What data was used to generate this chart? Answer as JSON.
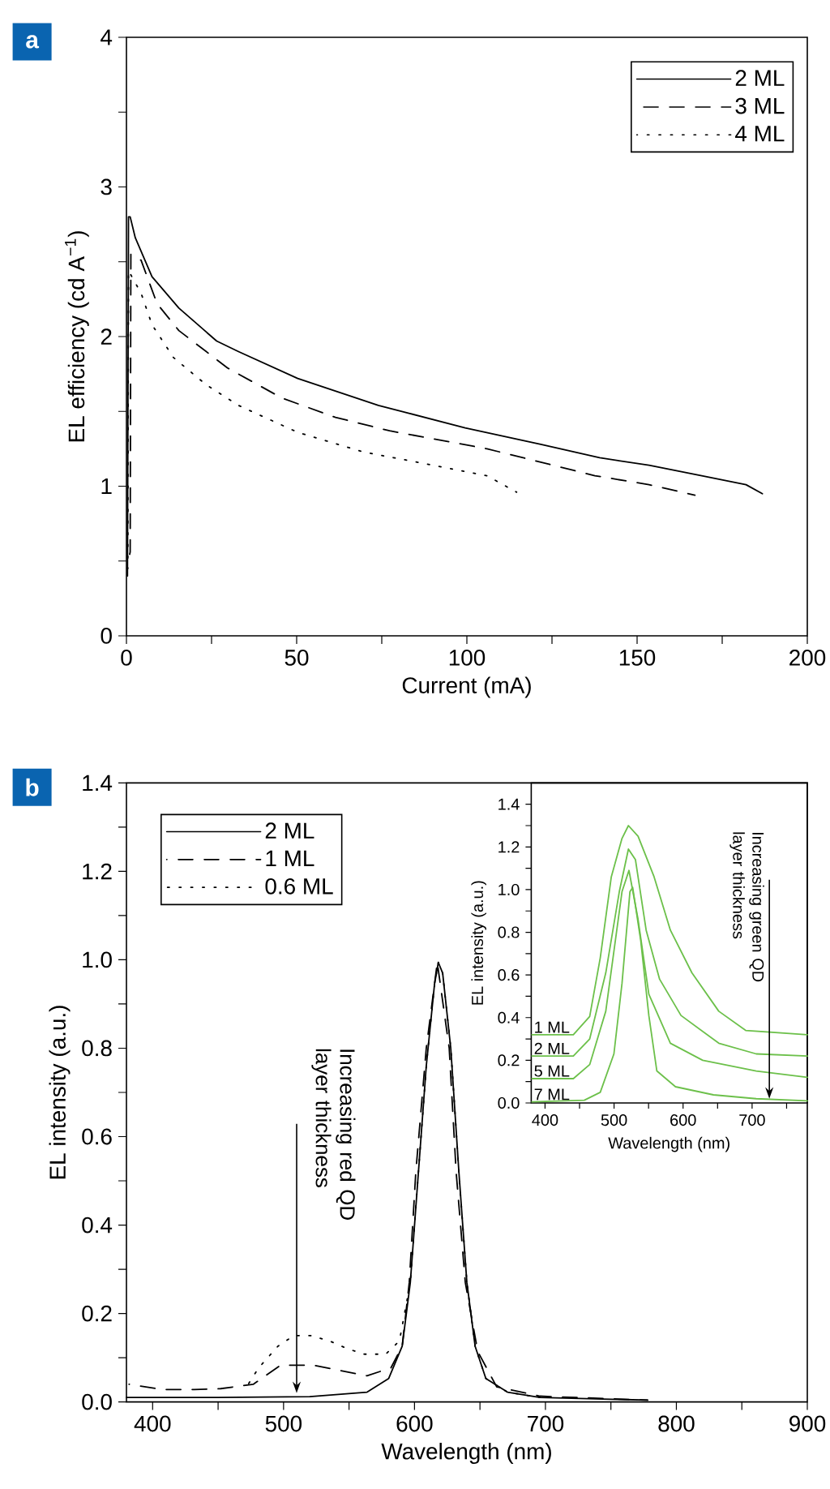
{
  "chart_data": [
    {
      "type": "line",
      "title": "a",
      "xlabel": "Current (mA)",
      "ylabel": "EL efficiency (cd A$^{−1}$)",
      "xlim": [
        0,
        200
      ],
      "ylim": [
        0,
        4
      ],
      "xticks": [
        0,
        {
          "value": 25,
          "label": null
        },
        50,
        {
          "value": 75,
          "label": null
        },
        100,
        {
          "value": 125,
          "label": null
        },
        150,
        {
          "value": 175,
          "label": null
        },
        200
      ],
      "yticks": [
        0,
        {
          "value": 0.5,
          "label": null
        },
        1,
        {
          "value": 1.5,
          "label": null
        },
        2,
        {
          "value": 2.5,
          "label": null
        },
        3,
        {
          "value": 3.5,
          "label": null
        },
        4
      ],
      "legend": "top right",
      "series": [
        {
          "name": "2 ML",
          "color": "#000000",
          "line_style": "solid",
          "x": [
            0.3,
            0.6,
            1.1,
            2.6,
            7.5,
            15.4,
            26.5,
            32.9,
            50.3,
            74,
            99.5,
            121.7,
            139,
            153.5,
            169,
            182,
            186.8
          ],
          "values": [
            0.4,
            2.8,
            2.8,
            2.66,
            2.4,
            2.19,
            1.97,
            1.9,
            1.72,
            1.54,
            1.39,
            1.28,
            1.19,
            1.14,
            1.07,
            1.01,
            0.95
          ]
        },
        {
          "name": "3 ML",
          "color": "#000000",
          "line_style": "dashed",
          "x": [
            0.5,
            1.1,
            1.3,
            4.3,
            9,
            15.4,
            29.7,
            45.6,
            61.4,
            77.3,
            105.9,
            137.6,
            153.5,
            167
          ],
          "values": [
            0.5,
            0.56,
            2.55,
            2.51,
            2.22,
            2.04,
            1.79,
            1.59,
            1.46,
            1.37,
            1.25,
            1.07,
            1.01,
            0.94
          ]
        },
        {
          "name": "4 ML",
          "color": "#000000",
          "line_style": "dotted",
          "x": [
            0.4,
            0.6,
            4.3,
            7.5,
            13.8,
            23.3,
            32.9,
            50.3,
            69.4,
            90,
            105.9,
            114.6
          ],
          "values": [
            0.45,
            2.44,
            2.29,
            2.08,
            1.86,
            1.68,
            1.54,
            1.36,
            1.23,
            1.14,
            1.07,
            0.96
          ]
        }
      ]
    },
    {
      "type": "line",
      "title": "b",
      "xlabel": "Wavelength (nm)",
      "ylabel": "EL intensity (a.u.)",
      "xlim": [
        380,
        900
      ],
      "ylim": [
        0,
        1.4
      ],
      "xticks": [
        400,
        {
          "value": 450,
          "label": null
        },
        500,
        {
          "value": 550,
          "label": null
        },
        600,
        {
          "value": 650,
          "label": null
        },
        700,
        {
          "value": 750,
          "label": null
        },
        800,
        {
          "value": 850,
          "label": null
        },
        900
      ],
      "yticks": [
        {
          "value": 0,
          "label": "0.0"
        },
        {
          "value": 0.1,
          "label": null
        },
        0.2,
        {
          "value": 0.3,
          "label": null
        },
        0.4,
        {
          "value": 0.5,
          "label": null
        },
        0.6,
        {
          "value": 0.7,
          "label": null
        },
        0.8,
        {
          "value": 0.9,
          "label": null
        },
        {
          "value": 1,
          "label": "1.0"
        },
        {
          "value": 1.1,
          "label": null
        },
        1.2,
        {
          "value": 1.3,
          "label": null
        },
        1.4
      ],
      "legend": "top left",
      "annotations": [
        {
          "text": "Increasing red QD layer thickness",
          "x": 510,
          "y": 0.02
        }
      ],
      "series": [
        {
          "name": "2 ML",
          "color": "#000000",
          "line_style": "solid",
          "x": [
            380,
            450,
            520,
            563.8,
            580.3,
            590.6,
            596.8,
            603,
            609,
            615.3,
            618.2,
            621.5,
            627.7,
            633.9,
            640,
            646.3,
            654.5,
            671,
            695.8,
            778
          ],
          "values": [
            0.01,
            0.01,
            0.012,
            0.022,
            0.053,
            0.126,
            0.27,
            0.52,
            0.76,
            0.945,
            0.994,
            0.97,
            0.8,
            0.52,
            0.27,
            0.126,
            0.053,
            0.022,
            0.01,
            0.004
          ]
        },
        {
          "name": "1 ML",
          "color": "#000000",
          "line_style": "dashed",
          "x": [
            382,
            407,
            431.8,
            452,
            477,
            497.8,
            522.5,
            543,
            563.8,
            582,
            590.6,
            596,
            601,
            609,
            617.4,
            626.5,
            631.8,
            638.8,
            648.3,
            662.8,
            695.8,
            778
          ],
          "values": [
            0.04,
            0.028,
            0.028,
            0.03,
            0.04,
            0.083,
            0.083,
            0.071,
            0.059,
            0.077,
            0.126,
            0.27,
            0.52,
            0.8,
            0.994,
            0.8,
            0.52,
            0.27,
            0.114,
            0.034,
            0.013,
            0.004
          ]
        },
        {
          "name": "0.6 ML",
          "color": "#000000",
          "line_style": "dotted",
          "x": [
            473,
            481,
            495.7,
            508,
            520.5,
            535,
            549,
            561.7,
            578,
            588.5,
            596.8,
            603,
            609,
            615.3,
            618.2,
            621.5,
            627.7,
            633.9,
            640,
            646.3,
            654.5,
            671,
            695.8
          ],
          "values": [
            0.04,
            0.077,
            0.126,
            0.15,
            0.15,
            0.138,
            0.12,
            0.108,
            0.108,
            0.138,
            0.27,
            0.52,
            0.76,
            0.945,
            0.994,
            0.97,
            0.8,
            0.52,
            0.27,
            0.126,
            0.053,
            0.022,
            0.01
          ]
        }
      ]
    },
    {
      "type": "line",
      "xlabel": "Wavelength (nm)",
      "ylabel": "EL intensity (a.u.)",
      "xlim": [
        380,
        780
      ],
      "ylim": [
        0,
        1.5
      ],
      "xticks": [
        400,
        {
          "value": 450,
          "label": null
        },
        500,
        {
          "value": 550,
          "label": null
        },
        600,
        {
          "value": 650,
          "label": null
        },
        700,
        {
          "value": 750,
          "label": null
        }
      ],
      "yticks": [
        {
          "value": 0,
          "label": "0.0"
        },
        {
          "value": 0.1,
          "label": null
        },
        0.2,
        {
          "value": 0.3,
          "label": null
        },
        0.4,
        {
          "value": 0.5,
          "label": null
        },
        0.6,
        {
          "value": 0.7,
          "label": null
        },
        0.8,
        {
          "value": 0.9,
          "label": null
        },
        {
          "value": 1,
          "label": "1.0"
        },
        {
          "value": 1.1,
          "label": null
        },
        1.2,
        {
          "value": 1.3,
          "label": null
        },
        1.4
      ],
      "annotations": [
        {
          "text": "Increasing green QD layer thickness",
          "x": 725,
          "y": 0.02
        }
      ],
      "series": [
        {
          "name": "1 ML",
          "color": "#6cc04a",
          "line_style": "solid",
          "x": [
            381,
            441,
            464.7,
            480,
            496,
            511.5,
            520.8,
            534.8,
            558,
            581.6,
            612.8,
            651.7,
            690.7,
            780
          ],
          "values": [
            0.32,
            0.32,
            0.405,
            0.68,
            1.06,
            1.24,
            1.3,
            1.25,
            1.06,
            0.81,
            0.61,
            0.43,
            0.34,
            0.32
          ]
        },
        {
          "name": "2 ML",
          "color": "#6cc04a",
          "line_style": "solid",
          "x": [
            381,
            441,
            464.7,
            488,
            507.6,
            520.8,
            531,
            546.5,
            566,
            597,
            651.7,
            706,
            780
          ],
          "values": [
            0.22,
            0.22,
            0.3,
            0.61,
            0.99,
            1.19,
            1.14,
            0.81,
            0.58,
            0.41,
            0.28,
            0.23,
            0.22
          ]
        },
        {
          "name": "5 ML",
          "color": "#6cc04a",
          "line_style": "solid",
          "x": [
            381,
            441,
            464.7,
            488,
            511.5,
            521.6,
            534.8,
            550.4,
            581.6,
            628.4,
            706,
            780
          ],
          "values": [
            0.114,
            0.114,
            0.18,
            0.43,
            0.99,
            1.09,
            0.86,
            0.51,
            0.28,
            0.2,
            0.15,
            0.12
          ]
        },
        {
          "name": "7 ML",
          "color": "#6cc04a",
          "line_style": "solid",
          "x": [
            381,
            456.9,
            480,
            499.8,
            511.5,
            523,
            527,
            538.7,
            550.4,
            562,
            589,
            644,
            706,
            780
          ],
          "values": [
            0.005,
            0.013,
            0.05,
            0.23,
            0.56,
            0.99,
            1.01,
            0.76,
            0.41,
            0.15,
            0.076,
            0.038,
            0.02,
            0.01
          ]
        }
      ]
    }
  ]
}
